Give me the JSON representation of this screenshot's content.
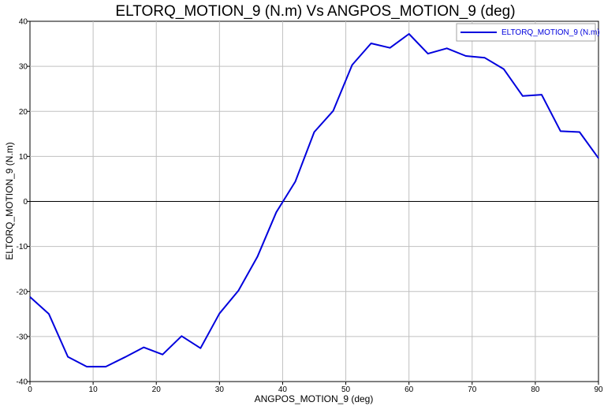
{
  "chart_data": {
    "type": "line",
    "title": "ELTORQ_MOTION_9  (N.m) Vs ANGPOS_MOTION_9 (deg)",
    "xlabel": "ANGPOS_MOTION_9 (deg)",
    "ylabel": "ELTORQ_MOTION_9  (N.m)",
    "xlim": [
      0,
      90
    ],
    "ylim": [
      -40,
      40
    ],
    "x_ticks": [
      0,
      10,
      20,
      30,
      40,
      50,
      60,
      70,
      80,
      90
    ],
    "y_ticks": [
      -40,
      -30,
      -20,
      -10,
      0,
      10,
      20,
      30,
      40
    ],
    "grid": true,
    "legend_position": "top-right",
    "series": [
      {
        "name": "ELTORQ_MOTION_9 (N.m)",
        "color": "#0000dd",
        "x": [
          0,
          3,
          6,
          9,
          12,
          15,
          18,
          21,
          24,
          27,
          30,
          33,
          36,
          39,
          42,
          45,
          48,
          51,
          54,
          57,
          60,
          63,
          66,
          69,
          72,
          75,
          78,
          81,
          84,
          87,
          90
        ],
        "y": [
          -21.2,
          -25,
          -34.5,
          -36.7,
          -36.7,
          -34.6,
          -32.4,
          -34,
          -29.9,
          -32.6,
          -24.9,
          -19.8,
          -12.3,
          -2.4,
          4.4,
          15.4,
          20.1,
          30.3,
          35.1,
          34.1,
          37.2,
          32.8,
          34,
          32.3,
          31.9,
          29.4,
          23.4,
          23.7,
          15.6,
          15.4,
          9.6
        ]
      }
    ]
  }
}
